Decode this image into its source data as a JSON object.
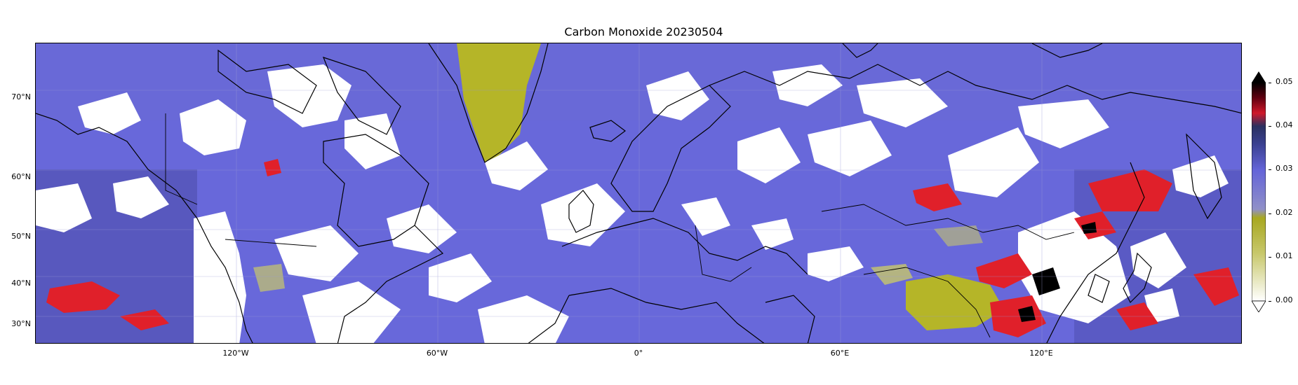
{
  "title": "Carbon Monoxide 20230504",
  "colorbar": {
    "ticks": [
      "0.05",
      "0.04",
      "0.03",
      "0.02",
      "0.01",
      "0.00"
    ],
    "extend": "max",
    "colors": {
      "low": "#ffffff",
      "olive": "#b5b520",
      "lavender": "#6a6ae2",
      "navy": "#2e3478",
      "red": "#e0202a",
      "black": "#000000"
    }
  },
  "map": {
    "lat_labels": [
      "70°N",
      "60°N",
      "50°N",
      "40°N",
      "30°N"
    ],
    "lon_labels": [
      "120°W",
      "60°W",
      "0°",
      "60°E",
      "120°E"
    ],
    "background_color": "#6464d8",
    "cloud_color": "#ffffff",
    "coastline_color": "#000000"
  }
}
